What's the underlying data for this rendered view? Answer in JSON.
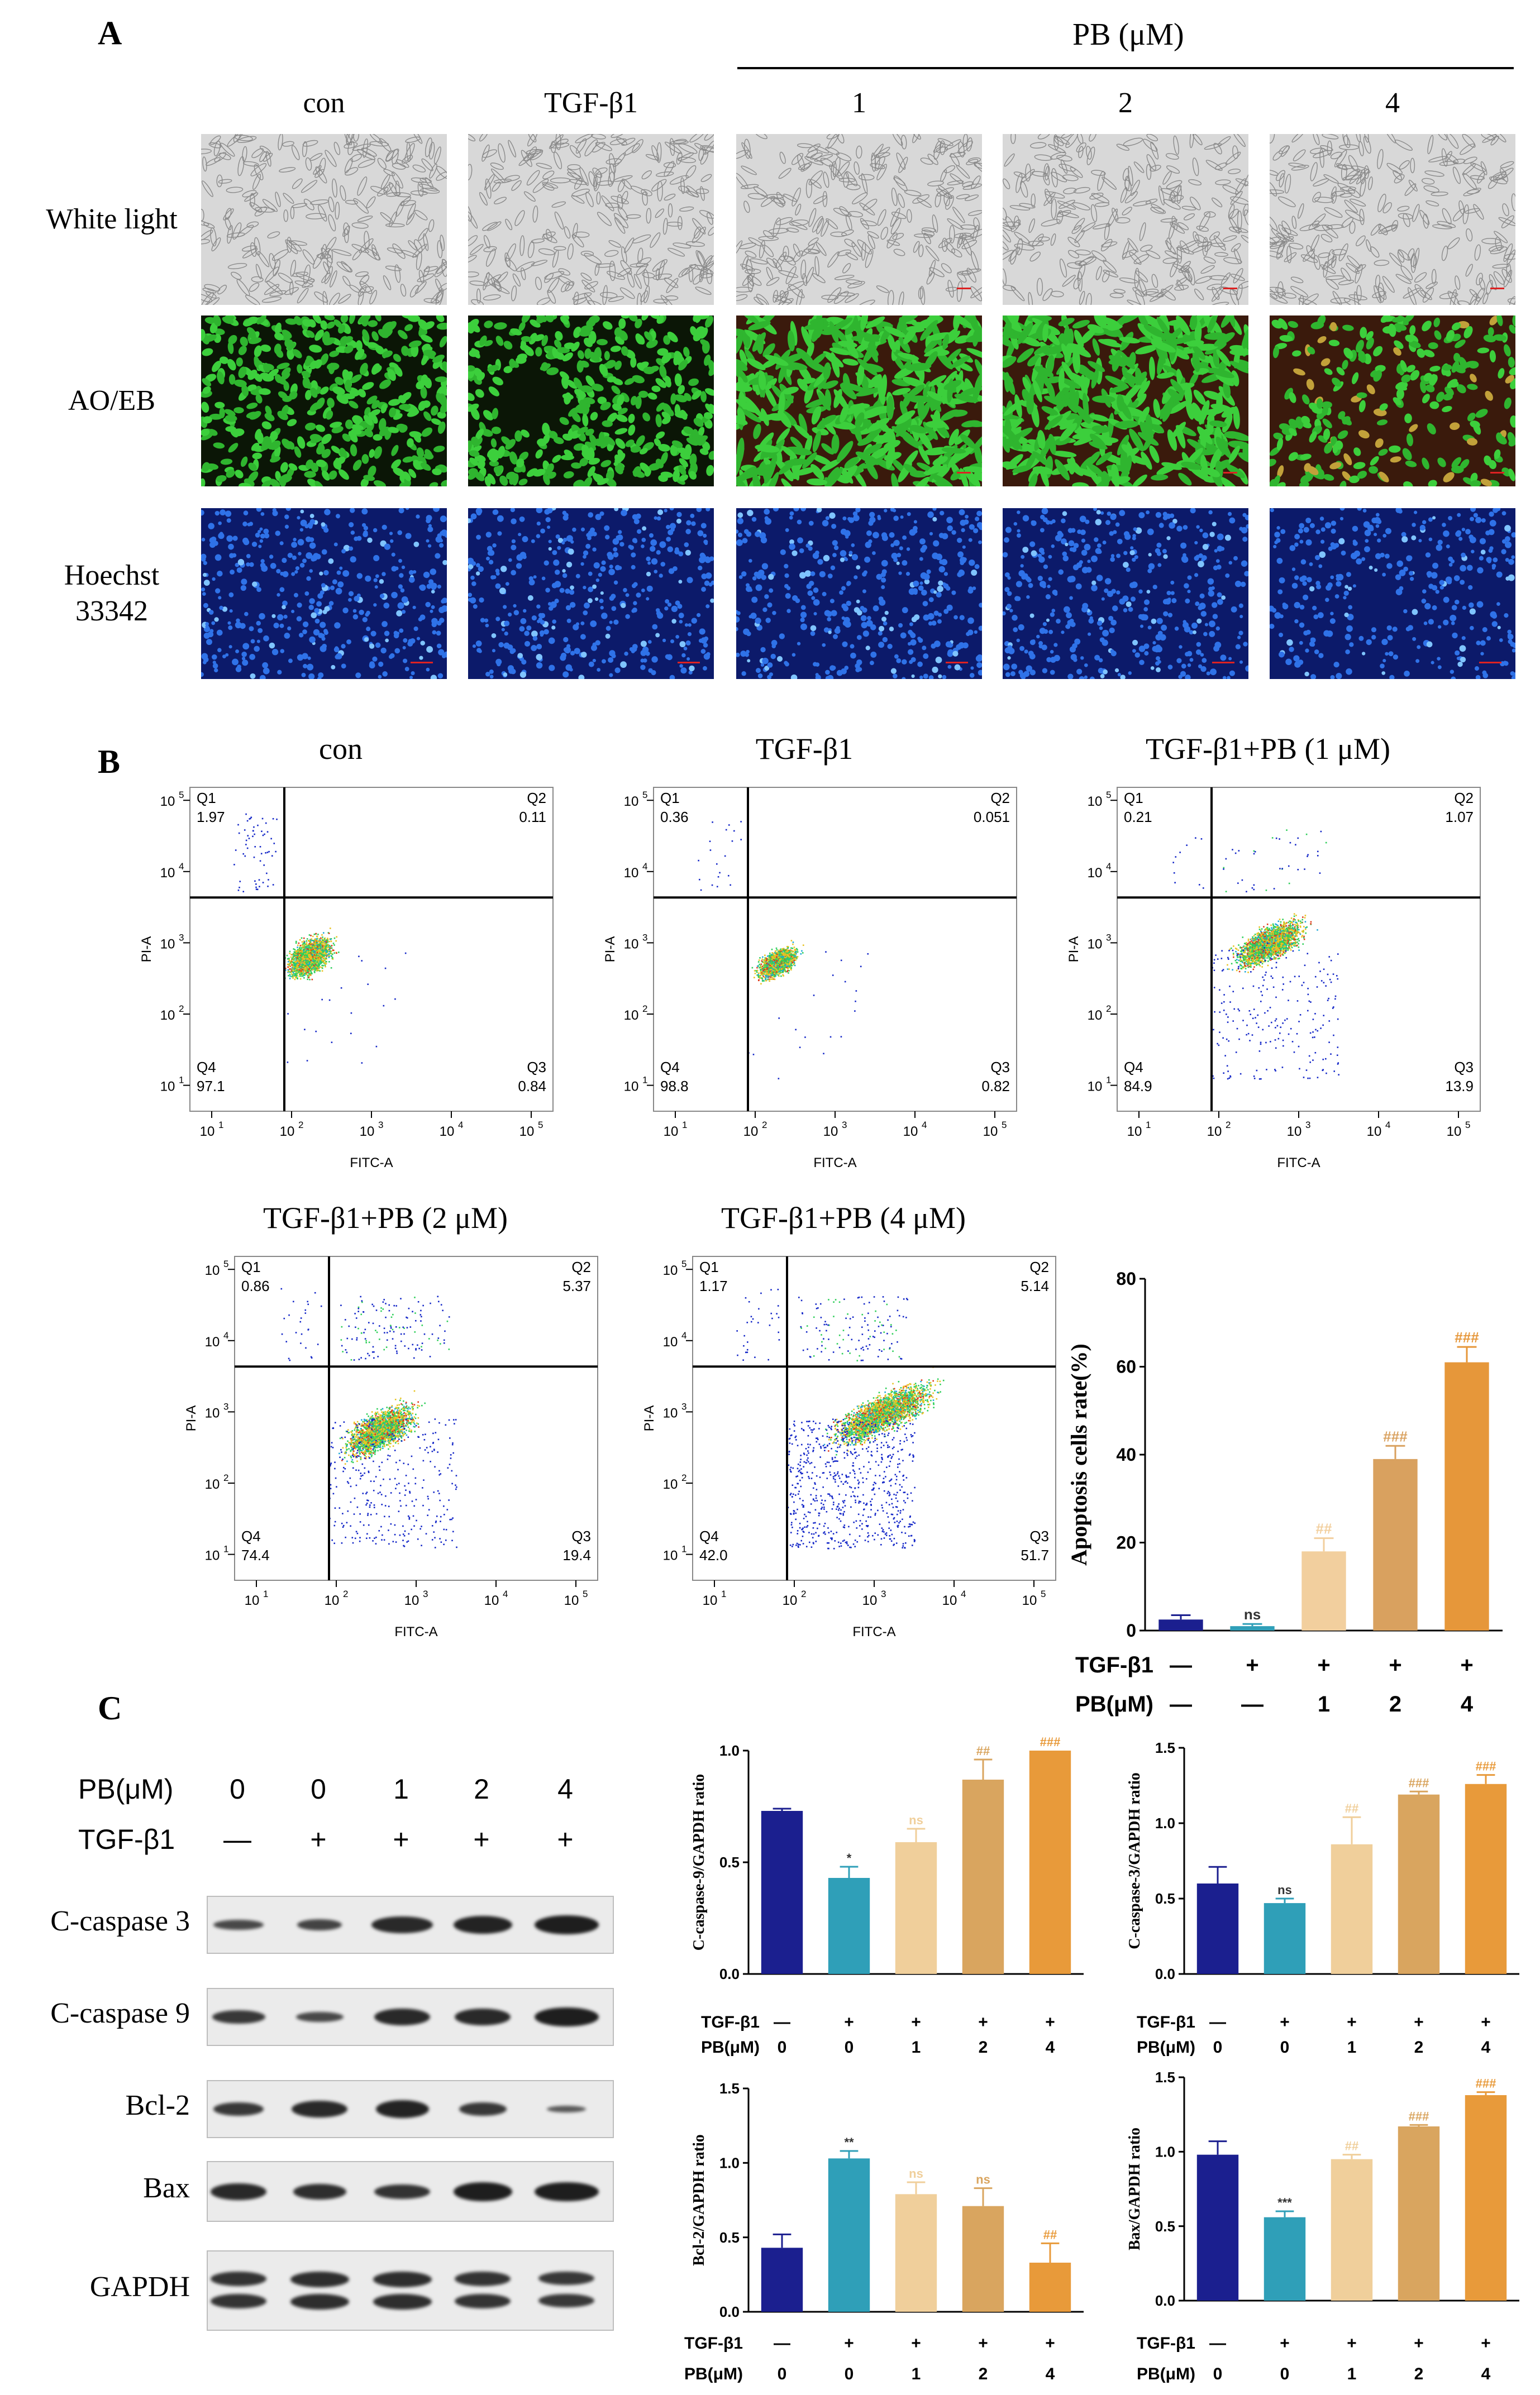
{
  "panelA": {
    "letter": "A",
    "pb_header": "PB (μM)",
    "columns": [
      "con",
      "TGF-β1",
      "1",
      "2",
      "4"
    ],
    "rows": [
      "White light",
      "AO/EB",
      "Hoechst\n33342"
    ],
    "row_names": [
      "white-light",
      "ao-eb",
      "hoechst"
    ]
  },
  "panelB": {
    "letter": "B",
    "flow": [
      {
        "title": "con",
        "q1": "1.97",
        "q2": "0.11",
        "q3": "0.84",
        "q4": "97.1"
      },
      {
        "title": "TGF-β1",
        "q1": "0.36",
        "q2": "0.051",
        "q3": "0.82",
        "q4": "98.8"
      },
      {
        "title": "TGF-β1+PB (1 μM)",
        "q1": "0.21",
        "q2": "1.07",
        "q3": "13.9",
        "q4": "84.9"
      },
      {
        "title": "TGF-β1+PB (2 μM)",
        "q1": "0.86",
        "q2": "5.37",
        "q3": "19.4",
        "q4": "74.4"
      },
      {
        "title": "TGF-β1+PB (4 μM)",
        "q1": "1.17",
        "q2": "5.14",
        "q3": "51.7",
        "q4": "42.0"
      }
    ],
    "quadrant_names": [
      "Q1",
      "Q2",
      "Q3",
      "Q4"
    ],
    "flow_xlabel": "FITC-A",
    "flow_ylabel": "PI-A",
    "flow_ticks": [
      "10",
      "10",
      "10",
      "10",
      "10"
    ],
    "flow_tick_exp": [
      "1",
      "2",
      "3",
      "4",
      "5"
    ]
  },
  "panelC": {
    "letter": "C",
    "wb_pb_label": "PB(μM)",
    "wb_tgf_label": "TGF-β1",
    "wb_pb_values": [
      "0",
      "0",
      "1",
      "2",
      "4"
    ],
    "wb_tgf_values": [
      "—",
      "+",
      "+",
      "+",
      "+"
    ],
    "wb_rows": [
      "C-caspase 3",
      "C-caspase 9",
      "Bcl-2",
      "Bax",
      "GAPDH"
    ]
  },
  "condition_rows": {
    "tgf_label": "TGF-β1",
    "pb_label": "PB(μM)",
    "tgf": [
      "—",
      "+",
      "+",
      "+",
      "+"
    ],
    "pb_big": [
      "—",
      "—",
      "1",
      "2",
      "4"
    ],
    "pb_small": [
      "0",
      "0",
      "1",
      "2",
      "4"
    ]
  },
  "colors": {
    "bar": [
      "#1b1f8f",
      "#2f9fb8",
      "#f0cf9b",
      "#d9a55f",
      "#e89a3a"
    ],
    "apoptosis_bar": [
      "#1b1f8f",
      "#2f9fb8",
      "#f2cf9e",
      "#d9a15f",
      "#e6973a"
    ]
  },
  "chart_data": [
    {
      "type": "bar",
      "id": "apoptosis",
      "ylabel": "Apoptosis cells rate(%)",
      "ylim": [
        0,
        80
      ],
      "yticks": [
        "0",
        "20",
        "40",
        "60",
        "80"
      ],
      "values": [
        2.5,
        1.0,
        18.0,
        39.0,
        61.0
      ],
      "errors": [
        1.0,
        0.5,
        3.0,
        3.0,
        3.5
      ],
      "annotations": [
        "",
        "ns",
        "##",
        "###",
        "###"
      ]
    },
    {
      "type": "bar",
      "id": "casp9",
      "ylabel": "C-caspase-9/GAPDH ratio",
      "ylim": [
        0,
        1.0
      ],
      "yticks": [
        "0.0",
        "0.5",
        "1.0"
      ],
      "values": [
        0.73,
        0.43,
        0.59,
        0.87,
        1.0
      ],
      "errors": [
        0.01,
        0.05,
        0.06,
        0.09,
        0.0
      ],
      "annotations": [
        "",
        "*",
        "ns",
        "##",
        "###"
      ]
    },
    {
      "type": "bar",
      "id": "casp3",
      "ylabel": "C-caspase-3/GAPDH ratio",
      "ylim": [
        0,
        1.5
      ],
      "yticks": [
        "0.0",
        "0.5",
        "1.0",
        "1.5"
      ],
      "values": [
        0.6,
        0.47,
        0.86,
        1.19,
        1.26
      ],
      "errors": [
        0.11,
        0.03,
        0.18,
        0.02,
        0.06
      ],
      "annotations": [
        "",
        "ns",
        "##",
        "###",
        "###"
      ]
    },
    {
      "type": "bar",
      "id": "bcl2",
      "ylabel": "Bcl-2/GAPDH ratio",
      "ylim": [
        0,
        1.5
      ],
      "yticks": [
        "0.0",
        "0.5",
        "1.0",
        "1.5"
      ],
      "values": [
        0.43,
        1.03,
        0.79,
        0.71,
        0.33
      ],
      "errors": [
        0.09,
        0.05,
        0.08,
        0.12,
        0.13
      ],
      "annotations": [
        "",
        "**",
        "ns",
        "ns",
        "##"
      ]
    },
    {
      "type": "bar",
      "id": "bax",
      "ylabel": "Bax/GAPDH ratio",
      "ylim": [
        0,
        1.5
      ],
      "yticks": [
        "0.0",
        "0.5",
        "1.0",
        "1.5"
      ],
      "values": [
        0.98,
        0.56,
        0.95,
        1.17,
        1.38
      ],
      "errors": [
        0.09,
        0.04,
        0.03,
        0.01,
        0.02
      ],
      "annotations": [
        "",
        "***",
        "##",
        "###",
        "###"
      ]
    }
  ]
}
